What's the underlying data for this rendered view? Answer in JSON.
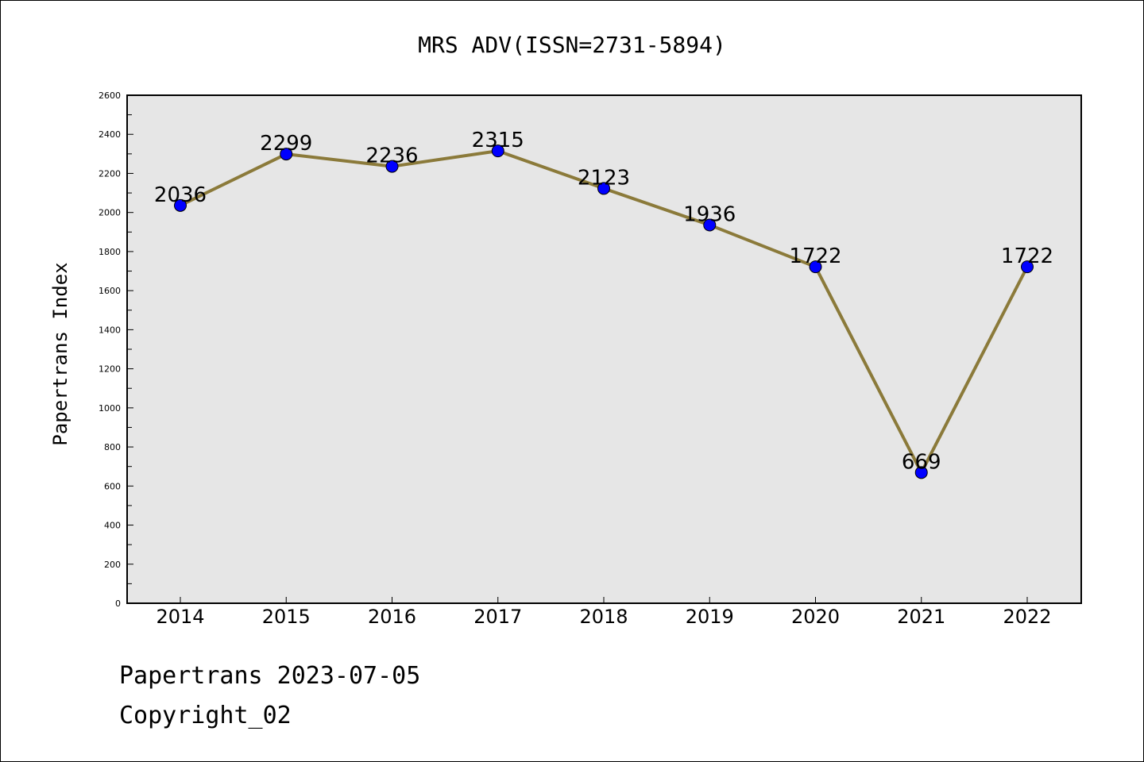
{
  "chart_data": {
    "type": "line",
    "title": "MRS ADV(ISSN=2731-5894)",
    "xlabel": "",
    "ylabel": "Papertrans Index",
    "categories": [
      "2014",
      "2015",
      "2016",
      "2017",
      "2018",
      "2019",
      "2020",
      "2021",
      "2022"
    ],
    "values": [
      2036,
      2299,
      2236,
      2315,
      2123,
      1936,
      1722,
      669,
      1722
    ],
    "data_labels": [
      "2036",
      "2299",
      "2236",
      "2315",
      "2123",
      "1936",
      "1722",
      "669",
      "1722"
    ],
    "ylim": [
      0,
      2600
    ],
    "yticks": [
      0,
      200,
      400,
      600,
      800,
      1000,
      1200,
      1400,
      1600,
      1800,
      2000,
      2200,
      2400,
      2600
    ],
    "ytick_labels": [
      "0",
      "200",
      "400",
      "600",
      "800",
      "1000",
      "1200",
      "1400",
      "1600",
      "1800",
      "2000",
      "2200",
      "2400",
      "2600"
    ],
    "grid": false,
    "colors": {
      "line": "#8B7A3A",
      "marker": "#0000FF",
      "plot_background": "#E6E6E6"
    }
  },
  "footer": {
    "line1": "Papertrans 2023-07-05",
    "line2": "Copyright_02"
  }
}
